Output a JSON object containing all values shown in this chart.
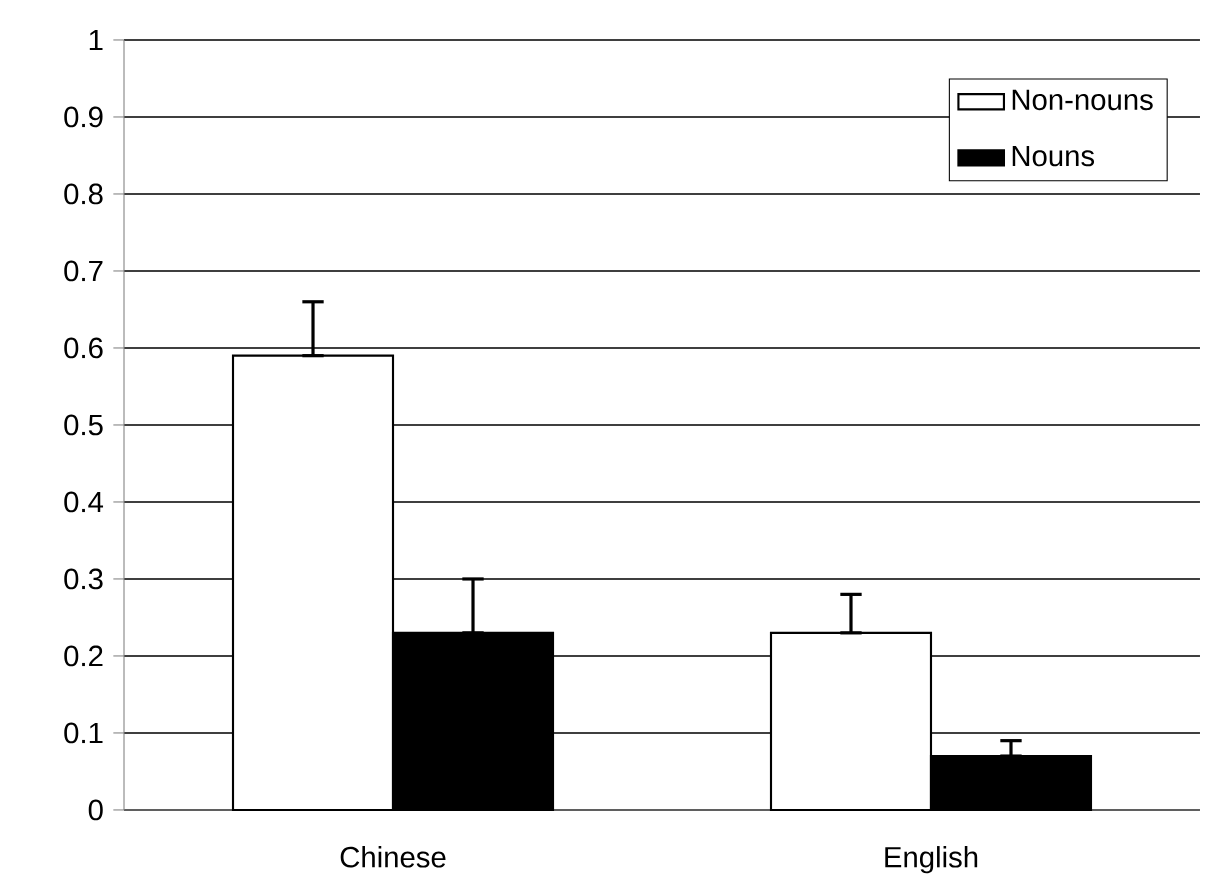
{
  "chart_data": {
    "type": "bar",
    "categories": [
      "Chinese",
      "English"
    ],
    "series": [
      {
        "name": "Non-nouns",
        "color": "#ffffff",
        "values": [
          0.59,
          0.23
        ],
        "errors": [
          [
            0.59,
            0.66
          ],
          [
            0.23,
            0.28
          ]
        ]
      },
      {
        "name": "Nouns",
        "color": "#000000",
        "values": [
          0.23,
          0.07
        ],
        "errors": [
          [
            0.23,
            0.3
          ],
          [
            0.07,
            0.09
          ]
        ]
      }
    ],
    "ylim": [
      0,
      1
    ],
    "yticks": [
      0,
      0.1,
      0.2,
      0.3,
      0.4,
      0.5,
      0.6,
      0.7,
      0.8,
      0.9,
      1
    ],
    "grid": "y",
    "legend": "top right"
  }
}
